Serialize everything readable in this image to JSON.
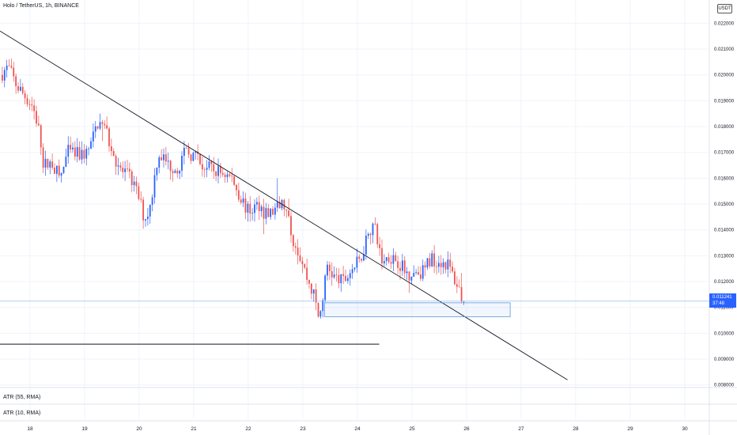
{
  "header": {
    "title": "Holo / TetherUS, 1h, BINANCE",
    "quote_badge": "USDT"
  },
  "price_tag": {
    "price": "0.011241",
    "countdown": "37:48"
  },
  "indicators": [
    {
      "label": "ATR (55, RMA)"
    },
    {
      "label": "ATR (10, RMA)"
    }
  ],
  "colors": {
    "up": "#2962ff",
    "down": "#ef5350",
    "line": "#131722",
    "box_border": "#5b9bd5",
    "price_line": "#7fb2f0"
  },
  "chart_data": {
    "type": "candlestick",
    "x_tick_labels": [
      "18",
      "19",
      "20",
      "21",
      "22",
      "23",
      "24",
      "25",
      "26",
      "27",
      "28",
      "29",
      "30"
    ],
    "y_tick_labels": [
      "0.008000",
      "0.009000",
      "0.010000",
      "0.011000",
      "0.012000",
      "0.013000",
      "0.014000",
      "0.015000",
      "0.016000",
      "0.017000",
      "0.018000",
      "0.019000",
      "0.020000",
      "0.021000",
      "0.022000"
    ],
    "ylim": [
      0.0079,
      0.0229
    ],
    "xlim": [
      17.45,
      30.45
    ],
    "current_price": 0.011241,
    "trendline": {
      "from": [
        17.45,
        0.0217
      ],
      "to": [
        27.85,
        0.0082
      ]
    },
    "support_line": {
      "from": [
        17.45,
        0.00958
      ],
      "to": [
        24.4,
        0.00958
      ]
    },
    "zone": {
      "x": [
        23.4,
        26.8
      ],
      "y": [
        0.01064,
        0.01118
      ]
    },
    "anchors": [
      [
        17.45,
        0.02
      ],
      [
        17.6,
        0.0203
      ],
      [
        17.75,
        0.0196
      ],
      [
        17.9,
        0.0192
      ],
      [
        18.05,
        0.0188
      ],
      [
        18.15,
        0.018
      ],
      [
        18.25,
        0.0165
      ],
      [
        18.4,
        0.0166
      ],
      [
        18.55,
        0.016
      ],
      [
        18.7,
        0.017
      ],
      [
        18.9,
        0.0169
      ],
      [
        19.05,
        0.017
      ],
      [
        19.15,
        0.0175
      ],
      [
        19.25,
        0.0182
      ],
      [
        19.4,
        0.0178
      ],
      [
        19.55,
        0.0168
      ],
      [
        19.7,
        0.0162
      ],
      [
        19.85,
        0.016
      ],
      [
        20.0,
        0.0152
      ],
      [
        20.1,
        0.0144
      ],
      [
        20.2,
        0.0149
      ],
      [
        20.35,
        0.017
      ],
      [
        20.55,
        0.0165
      ],
      [
        20.7,
        0.0164
      ],
      [
        20.85,
        0.017
      ],
      [
        21.0,
        0.0169
      ],
      [
        21.15,
        0.0165
      ],
      [
        21.35,
        0.0163
      ],
      [
        21.55,
        0.0162
      ],
      [
        21.7,
        0.016
      ],
      [
        21.85,
        0.0153
      ],
      [
        22.0,
        0.0147
      ],
      [
        22.2,
        0.015
      ],
      [
        22.35,
        0.0145
      ],
      [
        22.5,
        0.0148
      ],
      [
        22.65,
        0.015
      ],
      [
        22.8,
        0.0138
      ],
      [
        22.95,
        0.013
      ],
      [
        23.1,
        0.012
      ],
      [
        23.2,
        0.0115
      ],
      [
        23.3,
        0.0105
      ],
      [
        23.45,
        0.0126
      ],
      [
        23.6,
        0.0121
      ],
      [
        23.75,
        0.012
      ],
      [
        23.9,
        0.0125
      ],
      [
        24.05,
        0.0128
      ],
      [
        24.2,
        0.014
      ],
      [
        24.3,
        0.0142
      ],
      [
        24.45,
        0.0128
      ],
      [
        24.6,
        0.013
      ],
      [
        24.75,
        0.0128
      ],
      [
        24.9,
        0.0123
      ],
      [
        25.05,
        0.0124
      ],
      [
        25.2,
        0.0124
      ],
      [
        25.35,
        0.0129
      ],
      [
        25.5,
        0.0128
      ],
      [
        25.65,
        0.0127
      ],
      [
        25.8,
        0.012
      ],
      [
        25.95,
        0.0113
      ]
    ]
  }
}
